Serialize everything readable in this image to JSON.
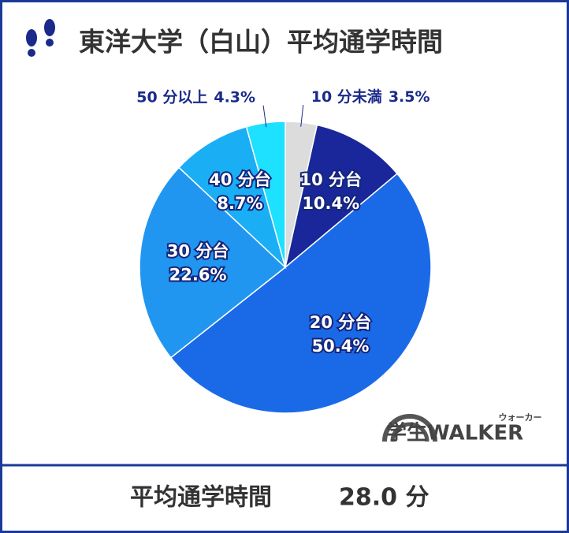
{
  "chart_data": {
    "type": "pie",
    "title": "東洋大学（白山）平均通学時間",
    "categories": [
      "10 分未満",
      "10 分台",
      "20 分台",
      "30 分台",
      "40 分台",
      "50 分以上"
    ],
    "values": [
      3.5,
      10.4,
      50.4,
      22.6,
      8.7,
      4.3
    ],
    "value_labels": [
      "3.5%",
      "10.4%",
      "50.4%",
      "22.6%",
      "8.7%",
      "4.3%"
    ],
    "colors": [
      "#dcdcdc",
      "#19279a",
      "#1a6ae8",
      "#2196f0",
      "#1aaef5",
      "#1ee0ff"
    ]
  },
  "footer": {
    "label": "平均通学時間",
    "value": "28.0 分"
  },
  "logo": {
    "text": "学生WALKER",
    "ruby": "ウォーカー"
  }
}
